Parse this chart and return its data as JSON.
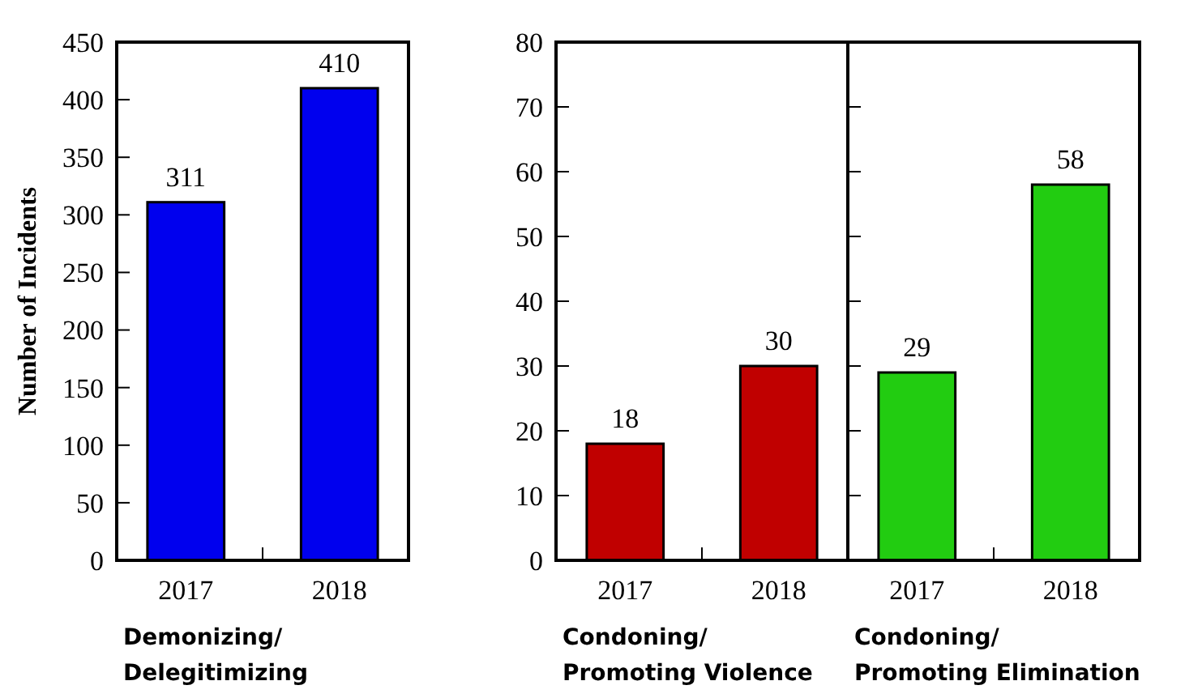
{
  "chart_data": [
    {
      "type": "bar",
      "categories": [
        "2017",
        "2018"
      ],
      "values": [
        311,
        410
      ],
      "color": "#0000ee",
      "ylim": [
        0,
        450
      ],
      "yticks": [
        0,
        50,
        100,
        150,
        200,
        250,
        300,
        350,
        400,
        450
      ],
      "ylabel": "Number of Incidents",
      "xlabel": "Demonizing/\nDelegitimizing",
      "data_labels": true,
      "grid": false
    },
    {
      "type": "bar",
      "categories": [
        "2017",
        "2018"
      ],
      "values": [
        18,
        30
      ],
      "color": "#c00000",
      "ylim": [
        0,
        80
      ],
      "yticks": [
        0,
        10,
        20,
        30,
        40,
        50,
        60,
        70,
        80
      ],
      "xlabel": "Condoning/\nPromoting Violence",
      "data_labels": true,
      "grid": false
    },
    {
      "type": "bar",
      "categories": [
        "2017",
        "2018"
      ],
      "values": [
        29,
        58
      ],
      "color": "#22cc11",
      "ylim": [
        0,
        80
      ],
      "yticks": [
        0,
        10,
        20,
        30,
        40,
        50,
        60,
        70,
        80
      ],
      "xlabel": "Condoning/\nPromoting Elimination",
      "data_labels": true,
      "tick_labels": "x",
      "grid": false
    }
  ]
}
